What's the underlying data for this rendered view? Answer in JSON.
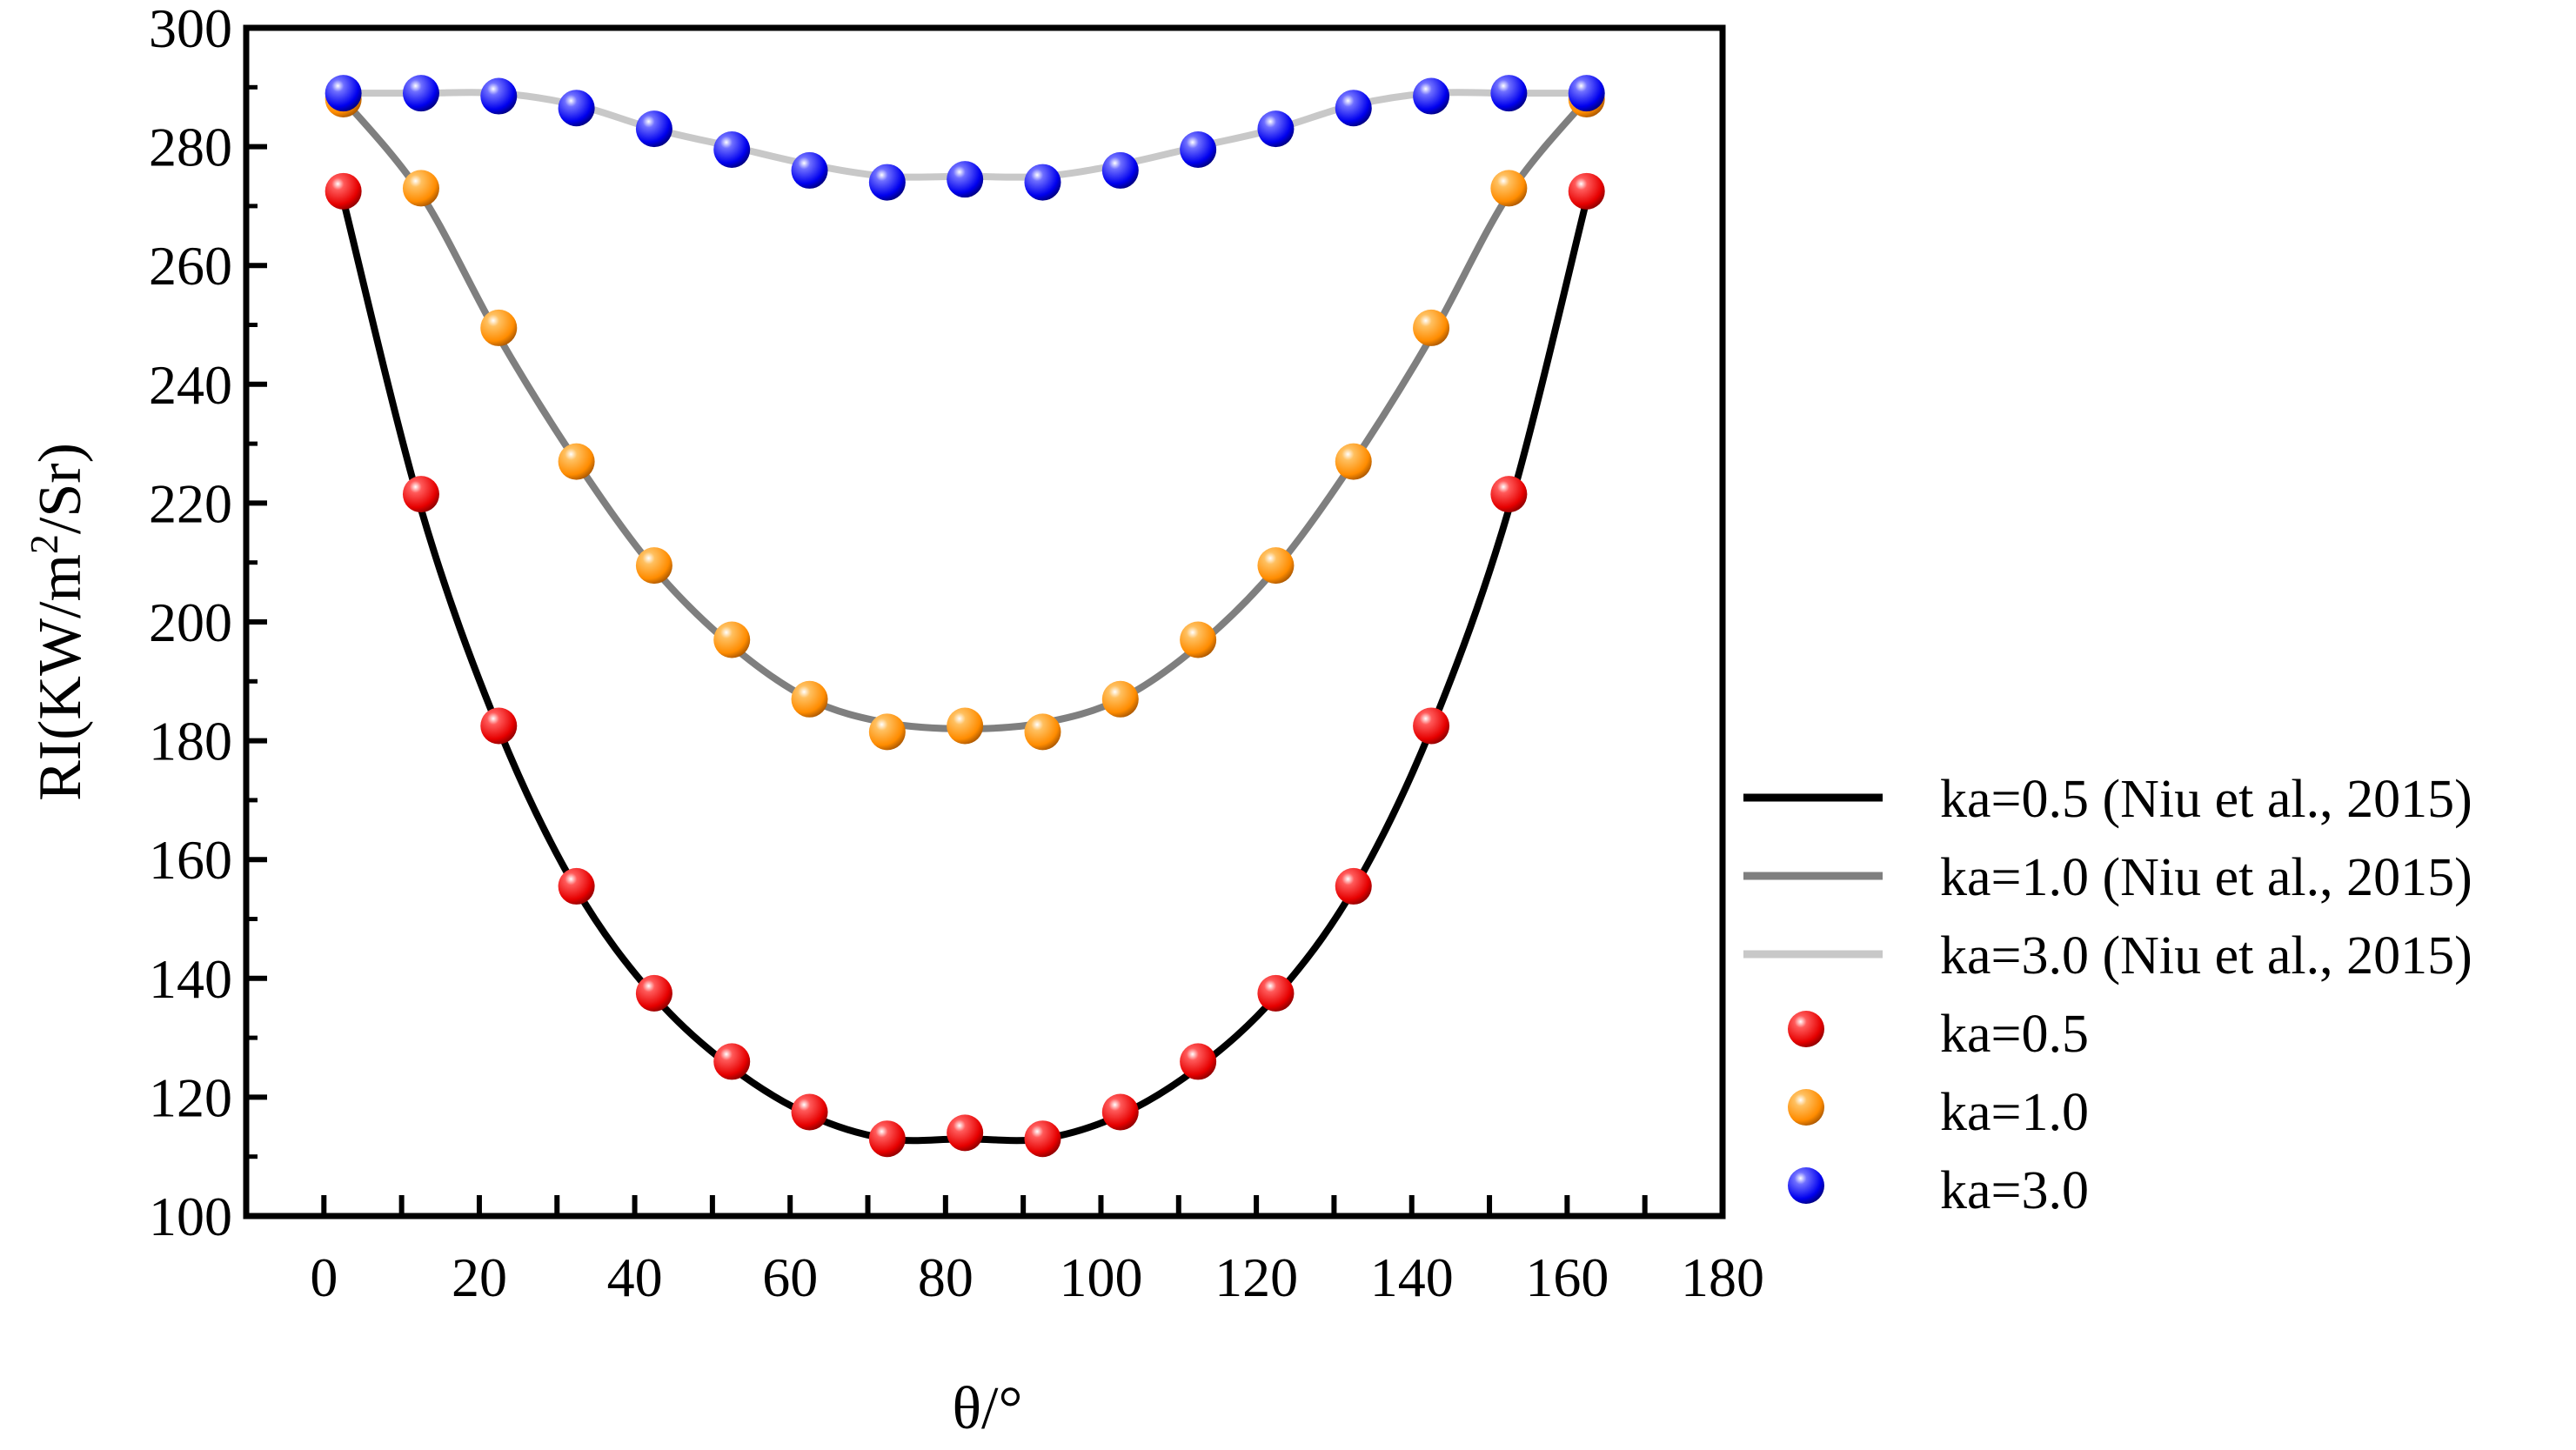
{
  "chart_data": {
    "type": "line",
    "title": "",
    "xlabel": "θ/°",
    "ylabel_parts": {
      "base": "RI(KW/m",
      "sup": "2",
      "tail": "/Sr)"
    },
    "xlim": [
      -10,
      180
    ],
    "ylim": [
      100,
      300
    ],
    "xticks": [
      0,
      20,
      40,
      60,
      80,
      100,
      120,
      140,
      160,
      180
    ],
    "yticks": [
      100,
      120,
      140,
      160,
      180,
      200,
      220,
      240,
      260,
      280,
      300
    ],
    "legend_position": "right",
    "x": [
      2.5,
      12.5,
      22.5,
      32.5,
      42.5,
      52.5,
      62.5,
      72.5,
      82.5,
      92.5,
      102.5,
      112.5,
      122.5,
      132.5,
      142.5,
      152.5,
      162.5
    ],
    "series": [
      {
        "name": "ka=0.5 (Niu et al., 2015)",
        "kind": "line",
        "color": "#000000",
        "values": [
          271,
          219,
          182,
          155,
          137,
          125,
          117,
          113,
          113,
          113,
          117,
          125,
          137,
          155,
          182,
          219,
          271
        ]
      },
      {
        "name": "ka=1.0 (Niu et al., 2015)",
        "kind": "line",
        "color": "#7f7f7f",
        "values": [
          288,
          272,
          248,
          227,
          209,
          196,
          187,
          183,
          182,
          183,
          187,
          196,
          209,
          227,
          248,
          272,
          288
        ]
      },
      {
        "name": "ka=3.0 (Niu et al., 2015)",
        "kind": "line",
        "color": "#c8c8c8",
        "values": [
          289,
          289,
          289,
          287,
          283,
          280,
          277,
          275,
          275,
          275,
          277,
          280,
          283,
          287,
          289,
          289,
          289
        ]
      },
      {
        "name": "ka=0.5",
        "kind": "scatter",
        "color": "#ff0000",
        "values": [
          272.5,
          221.5,
          182.5,
          155.5,
          137.5,
          126,
          117.5,
          113,
          114,
          113,
          117.5,
          126,
          137.5,
          155.5,
          182.5,
          221.5,
          272.5
        ]
      },
      {
        "name": "ka=1.0",
        "kind": "scatter",
        "color": "#ff8c00",
        "values": [
          288,
          273,
          249.5,
          227,
          209.5,
          197,
          187,
          181.5,
          182.5,
          181.5,
          187,
          197,
          209.5,
          227,
          249.5,
          273,
          288
        ]
      },
      {
        "name": "ka=3.0",
        "kind": "scatter",
        "color": "#0000ff",
        "values": [
          289,
          289,
          288.5,
          286.5,
          283,
          279.5,
          276,
          274,
          274.5,
          274,
          276,
          279.5,
          283,
          286.5,
          288.5,
          289,
          289
        ]
      }
    ]
  }
}
